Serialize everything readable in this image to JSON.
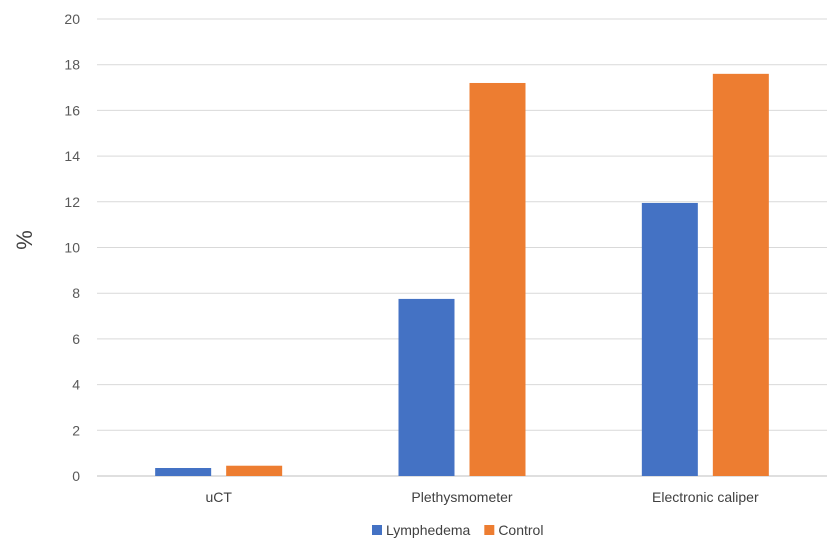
{
  "chart_data": {
    "type": "bar",
    "categories": [
      "uCT",
      "Plethysmometer",
      "Electronic caliper"
    ],
    "series": [
      {
        "name": "Lymphedema",
        "values": [
          0.35,
          7.75,
          11.95
        ],
        "color": "#4472C4"
      },
      {
        "name": "Control",
        "values": [
          0.45,
          17.2,
          17.6
        ],
        "color": "#ED7D31"
      }
    ],
    "ylabel": "%",
    "ylim": [
      0,
      20
    ],
    "yticks": [
      0,
      2,
      4,
      6,
      8,
      10,
      12,
      14,
      16,
      18,
      20
    ],
    "grid": true,
    "legend": "bottom-center"
  }
}
